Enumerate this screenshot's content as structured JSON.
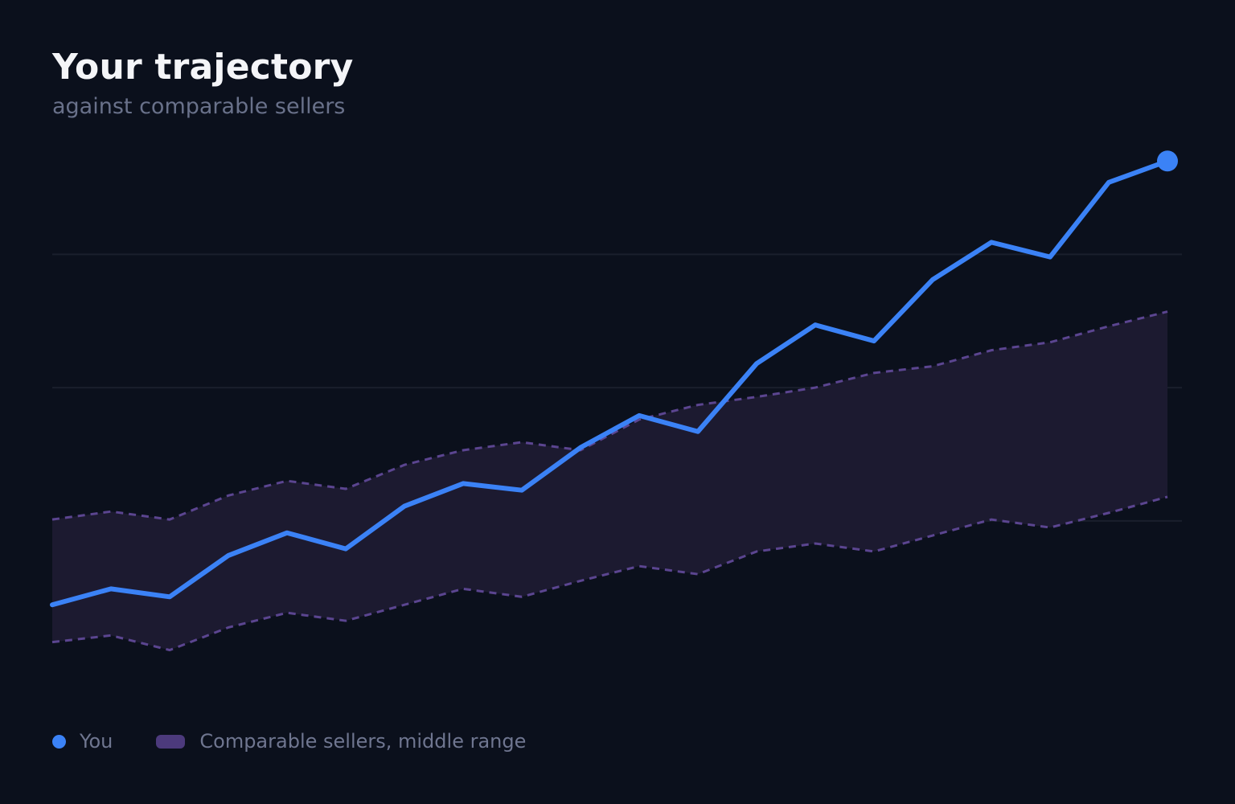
{
  "header": {
    "title": "Your trajectory",
    "subtitle": "against comparable sellers"
  },
  "legend": {
    "you_label": "You",
    "band_label": "Comparable sellers, middle range"
  },
  "colors": {
    "background": "#0b101c",
    "you_line": "#3b82f6",
    "band_fill": "#1c1a30",
    "band_edge": "#5b4590",
    "gridline": "#1a1f2c"
  },
  "chart_data": {
    "type": "line",
    "title": "Your trajectory",
    "subtitle": "against comparable sellers",
    "xlabel": "",
    "ylabel": "",
    "x": [
      1,
      2,
      3,
      4,
      5,
      6,
      7,
      8,
      9,
      10,
      11,
      12,
      13,
      14,
      15,
      16,
      17,
      18,
      19,
      20
    ],
    "ylim": [
      0,
      40
    ],
    "grid": {
      "horizontal": true,
      "lines": [
        12.5,
        22.5,
        32.5
      ]
    },
    "axes_visible": false,
    "series": [
      {
        "name": "You",
        "style": "solid",
        "end_marker": true,
        "values": [
          6.2,
          7.4,
          6.8,
          9.9,
          11.6,
          10.4,
          13.6,
          15.3,
          14.8,
          18.0,
          20.4,
          19.2,
          24.3,
          27.2,
          26.0,
          30.6,
          33.4,
          32.3,
          37.9,
          39.5
        ]
      },
      {
        "name": "Comparable sellers, middle range",
        "style": "band",
        "upper": [
          12.6,
          13.2,
          12.6,
          14.4,
          15.5,
          14.9,
          16.7,
          17.8,
          18.4,
          17.8,
          20.1,
          21.2,
          21.8,
          22.5,
          23.6,
          24.1,
          25.3,
          25.9,
          27.1,
          28.2
        ],
        "lower": [
          3.4,
          3.9,
          2.8,
          4.5,
          5.6,
          5.0,
          6.2,
          7.4,
          6.8,
          8.0,
          9.1,
          8.5,
          10.2,
          10.8,
          10.2,
          11.4,
          12.6,
          12.0,
          13.1,
          14.3
        ]
      }
    ]
  }
}
